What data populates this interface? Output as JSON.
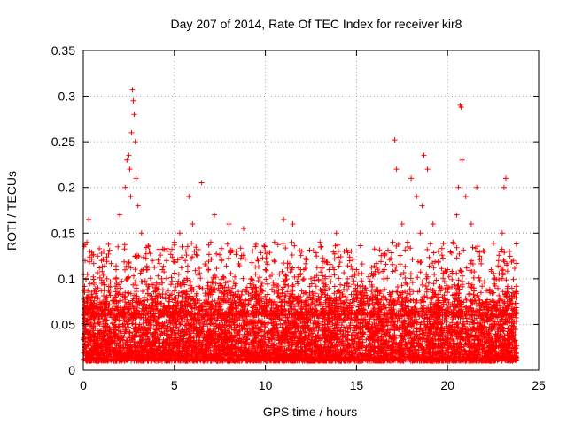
{
  "chart_data": {
    "type": "scatter",
    "title": "Day 207 of 2014, Rate Of TEC Index for receiver kir8",
    "xlabel": "GPS time / hours",
    "ylabel": "ROTI / TECUs",
    "xlim": [
      0,
      25
    ],
    "ylim": [
      0,
      0.35
    ],
    "xticks": [
      0,
      5,
      10,
      15,
      20,
      25
    ],
    "xtick_labels": [
      "0",
      "5",
      "10",
      "15",
      "20",
      "25"
    ],
    "yticks": [
      0,
      0.05,
      0.1,
      0.15,
      0.2,
      0.25,
      0.3,
      0.35
    ],
    "ytick_labels": [
      "0",
      "0.05",
      "0.1",
      "0.15",
      "0.2",
      "0.25",
      "0.3",
      "0.35"
    ],
    "grid": true,
    "marker": "+",
    "series_color": "#ff0000",
    "dense_band": {
      "description_x_range": [
        0,
        23.8
      ],
      "typical_range": [
        0.01,
        0.06
      ]
    },
    "series": [
      {
        "name": "ROTI",
        "x": [
          0.1,
          0.2,
          0.3,
          0.35,
          0.5,
          0.8,
          1.0,
          1.3,
          1.8,
          2.0,
          2.3,
          2.4,
          2.5,
          2.55,
          2.6,
          2.65,
          2.7,
          2.75,
          2.8,
          2.85,
          2.9,
          3.0,
          3.2,
          3.5,
          3.8,
          4.0,
          4.3,
          4.6,
          5.0,
          5.3,
          5.6,
          5.8,
          6.0,
          6.1,
          6.5,
          7.0,
          7.2,
          7.6,
          8.0,
          8.4,
          8.8,
          9.2,
          9.6,
          10.0,
          10.5,
          11.0,
          11.5,
          12.0,
          12.5,
          13.0,
          13.5,
          13.9,
          14.0,
          14.5,
          15.0,
          15.5,
          16.0,
          16.5,
          17.0,
          17.1,
          17.2,
          17.5,
          17.8,
          18.0,
          18.3,
          18.5,
          18.6,
          18.7,
          18.9,
          19.2,
          19.5,
          20.0,
          20.3,
          20.5,
          20.6,
          20.7,
          20.75,
          20.8,
          21.0,
          21.3,
          21.6,
          22.0,
          22.4,
          22.8,
          23.0,
          23.1,
          23.2,
          23.4,
          23.6
        ],
        "y": [
          0.12,
          0.14,
          0.165,
          0.13,
          0.08,
          0.09,
          0.12,
          0.1,
          0.11,
          0.17,
          0.2,
          0.23,
          0.235,
          0.22,
          0.19,
          0.26,
          0.307,
          0.295,
          0.28,
          0.25,
          0.21,
          0.18,
          0.15,
          0.11,
          0.12,
          0.09,
          0.1,
          0.13,
          0.14,
          0.15,
          0.12,
          0.19,
          0.16,
          0.13,
          0.205,
          0.14,
          0.17,
          0.12,
          0.16,
          0.13,
          0.155,
          0.1,
          0.12,
          0.11,
          0.14,
          0.165,
          0.16,
          0.13,
          0.1,
          0.14,
          0.11,
          0.15,
          0.13,
          0.1,
          0.11,
          0.09,
          0.08,
          0.1,
          0.14,
          0.252,
          0.22,
          0.16,
          0.14,
          0.21,
          0.19,
          0.15,
          0.18,
          0.235,
          0.22,
          0.16,
          0.13,
          0.11,
          0.14,
          0.17,
          0.2,
          0.29,
          0.288,
          0.23,
          0.19,
          0.16,
          0.2,
          0.13,
          0.11,
          0.12,
          0.15,
          0.2,
          0.21,
          0.13,
          0.12
        ]
      }
    ]
  }
}
